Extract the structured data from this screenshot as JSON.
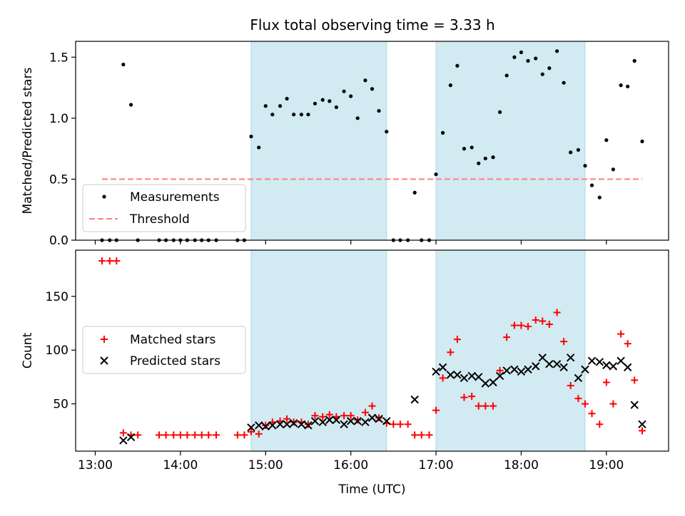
{
  "title": "Flux total observing time = 3.33 h",
  "colors": {
    "band": "#add8e6",
    "threshold": "#ff7f7f",
    "matched": "#ff0000",
    "predicted": "#000000",
    "measure": "#000000"
  },
  "chart_data": [
    {
      "type": "scatter",
      "ylabel": "Matched/Predicted stars",
      "xlim_hours": [
        12.77,
        19.73
      ],
      "ylim": [
        0,
        1.63
      ],
      "yticks": [
        0.0,
        0.5,
        1.0,
        1.5
      ],
      "ytick_labels": [
        "0.0",
        "0.5",
        "1.0",
        "1.5"
      ],
      "shaded_ranges_hours": [
        [
          14.83,
          16.42
        ],
        [
          17.0,
          18.75
        ]
      ],
      "series": [
        {
          "name": "Measurements",
          "x": [
            13.08,
            13.17,
            13.25,
            13.33,
            13.42,
            13.5,
            13.75,
            13.83,
            13.92,
            14.0,
            14.08,
            14.17,
            14.25,
            14.33,
            14.42,
            14.67,
            14.75,
            14.83,
            14.92,
            15.0,
            15.08,
            15.17,
            15.25,
            15.33,
            15.42,
            15.5,
            15.58,
            15.67,
            15.75,
            15.83,
            15.92,
            16.0,
            16.08,
            16.17,
            16.25,
            16.33,
            16.42,
            16.5,
            16.58,
            16.67,
            16.75,
            16.83,
            16.92,
            17.0,
            17.08,
            17.17,
            17.25,
            17.33,
            17.42,
            17.5,
            17.58,
            17.67,
            17.75,
            17.83,
            17.92,
            18.0,
            18.08,
            18.17,
            18.25,
            18.33,
            18.42,
            18.5,
            18.58,
            18.67,
            18.75,
            18.83,
            18.92,
            19.0,
            19.08,
            19.17,
            19.25,
            19.33,
            19.42
          ],
          "y": [
            0,
            0,
            0,
            1.44,
            1.11,
            0,
            0,
            0,
            0,
            0,
            0,
            0,
            0,
            0,
            0,
            0,
            0,
            0.85,
            0.76,
            1.1,
            1.03,
            1.1,
            1.16,
            1.03,
            1.03,
            1.03,
            1.12,
            1.15,
            1.14,
            1.09,
            1.22,
            1.18,
            1.0,
            1.31,
            1.24,
            1.06,
            0.89,
            0,
            0,
            0,
            0.39,
            0,
            0,
            0.54,
            0.88,
            1.27,
            1.43,
            0.75,
            0.76,
            0.63,
            0.67,
            0.68,
            1.05,
            1.35,
            1.5,
            1.54,
            1.47,
            1.49,
            1.36,
            1.41,
            1.55,
            1.29,
            0.72,
            0.74,
            0.61,
            0.45,
            0.35,
            0.82,
            0.58,
            1.27,
            1.26,
            1.47,
            0.81
          ]
        },
        {
          "name": "Threshold",
          "kind": "line",
          "x": [
            13.08,
            19.42
          ],
          "y": [
            0.5,
            0.5
          ]
        }
      ]
    },
    {
      "type": "scatter",
      "ylabel": "Count",
      "xlabel": "Time (UTC)",
      "xlim_hours": [
        12.77,
        19.73
      ],
      "ylim": [
        6,
        193
      ],
      "yticks": [
        50,
        100,
        150
      ],
      "ytick_labels": [
        "50",
        "100",
        "150"
      ],
      "xticks_hours": [
        13,
        14,
        15,
        16,
        17,
        18,
        19
      ],
      "xtick_labels": [
        "13:00",
        "14:00",
        "15:00",
        "16:00",
        "17:00",
        "18:00",
        "19:00"
      ],
      "shaded_ranges_hours": [
        [
          14.83,
          16.42
        ],
        [
          17.0,
          18.75
        ]
      ],
      "series": [
        {
          "name": "Matched stars",
          "x": [
            13.08,
            13.17,
            13.25,
            13.33,
            13.42,
            13.5,
            13.75,
            13.83,
            13.92,
            14.0,
            14.08,
            14.17,
            14.25,
            14.33,
            14.42,
            14.67,
            14.75,
            14.83,
            14.92,
            15.0,
            15.08,
            15.17,
            15.25,
            15.33,
            15.42,
            15.5,
            15.58,
            15.67,
            15.75,
            15.83,
            15.92,
            16.0,
            16.08,
            16.17,
            16.25,
            16.33,
            16.42,
            16.5,
            16.58,
            16.67,
            16.75,
            16.83,
            16.92,
            17.0,
            17.08,
            17.17,
            17.25,
            17.33,
            17.42,
            17.5,
            17.58,
            17.67,
            17.75,
            17.83,
            17.92,
            18.0,
            18.08,
            18.17,
            18.25,
            18.33,
            18.42,
            18.5,
            18.58,
            18.67,
            18.75,
            18.83,
            18.92,
            19.0,
            19.08,
            19.17,
            19.25,
            19.33,
            19.42
          ],
          "y": [
            183,
            183,
            183,
            23,
            21,
            21,
            21,
            21,
            21,
            21,
            21,
            21,
            21,
            21,
            21,
            21,
            21,
            24,
            22,
            30,
            33,
            34,
            36,
            33,
            33,
            31,
            39,
            38,
            40,
            38,
            39,
            39,
            35,
            42,
            48,
            37,
            32,
            31,
            31,
            31,
            21,
            21,
            21,
            44,
            74,
            98,
            110,
            56,
            57,
            48,
            48,
            48,
            81,
            112,
            123,
            123,
            122,
            128,
            127,
            124,
            135,
            108,
            67,
            55,
            50,
            41,
            31,
            70,
            50,
            115,
            106,
            72,
            25
          ]
        },
        {
          "name": "Predicted stars",
          "x": [
            13.33,
            13.42,
            14.83,
            14.92,
            15.0,
            15.08,
            15.17,
            15.25,
            15.33,
            15.42,
            15.5,
            15.58,
            15.67,
            15.75,
            15.83,
            15.92,
            16.0,
            16.08,
            16.17,
            16.25,
            16.33,
            16.42,
            16.75,
            17.0,
            17.08,
            17.17,
            17.25,
            17.33,
            17.42,
            17.5,
            17.58,
            17.67,
            17.75,
            17.83,
            17.92,
            18.0,
            18.08,
            18.17,
            18.25,
            18.33,
            18.42,
            18.5,
            18.58,
            18.67,
            18.75,
            18.83,
            18.92,
            19.0,
            19.08,
            19.17,
            19.25,
            19.33,
            19.42
          ],
          "y": [
            16,
            19,
            28,
            30,
            29,
            30,
            31,
            31,
            32,
            31,
            30,
            34,
            33,
            35,
            35,
            31,
            34,
            34,
            33,
            37,
            36,
            34,
            54,
            80,
            84,
            77,
            77,
            74,
            76,
            75,
            69,
            70,
            76,
            81,
            82,
            80,
            82,
            85,
            93,
            87,
            87,
            84,
            93,
            74,
            82,
            90,
            89,
            86,
            85,
            90,
            84,
            49,
            31
          ]
        }
      ]
    }
  ]
}
